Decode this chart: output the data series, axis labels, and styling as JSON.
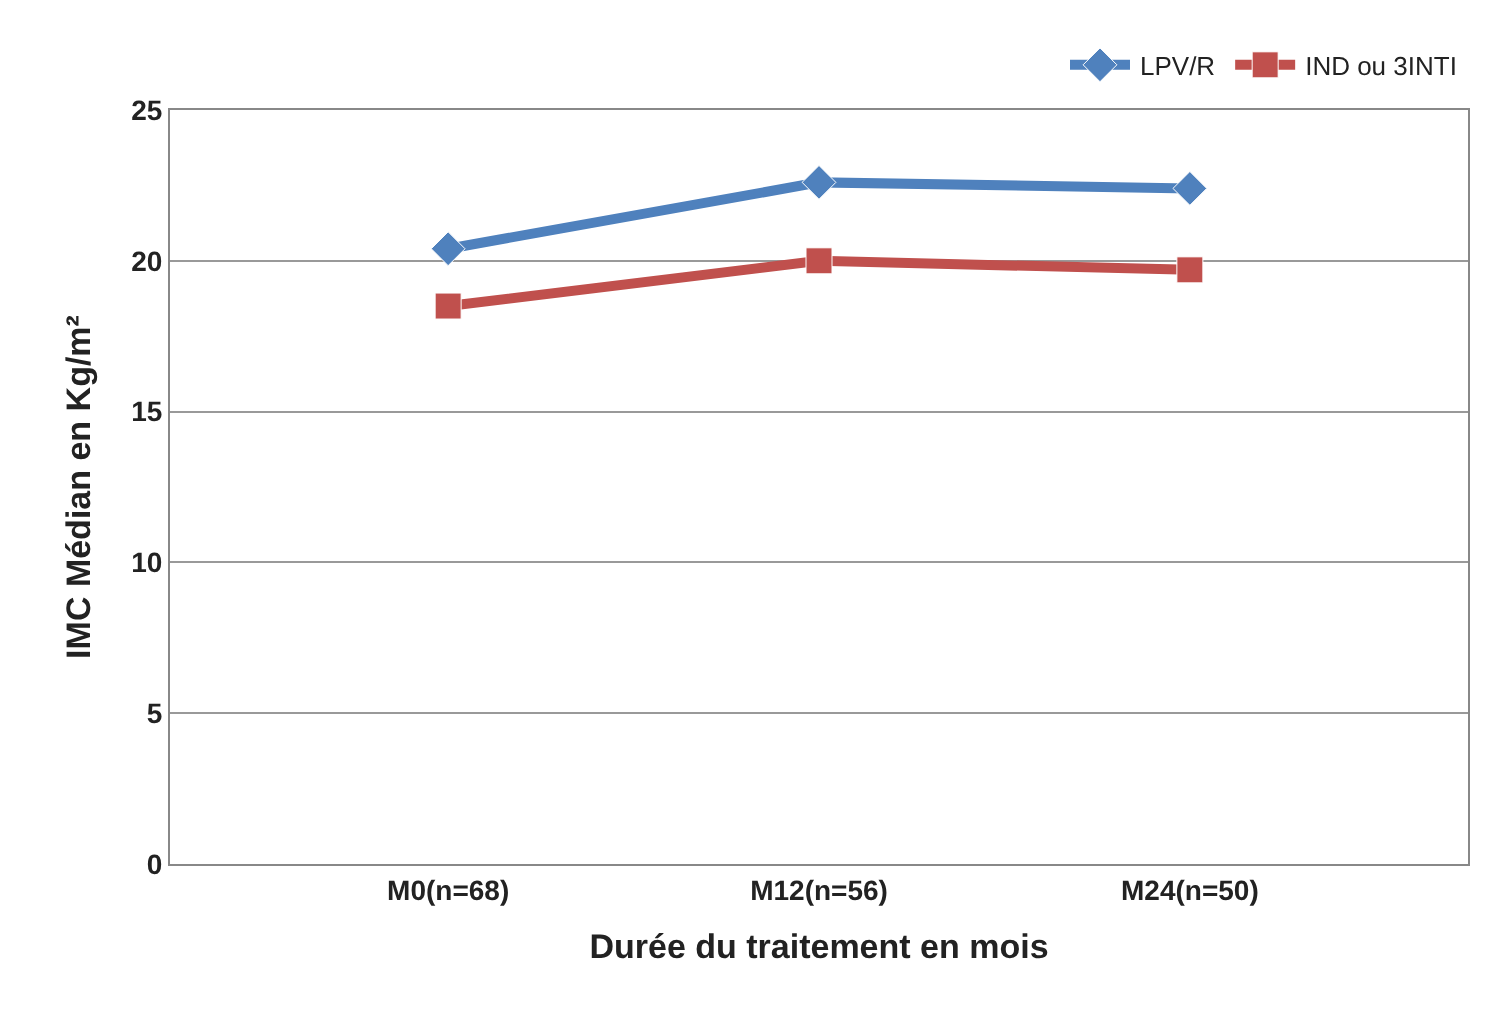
{
  "chart_data": {
    "type": "line",
    "xlabel": "Durée du traitement en mois",
    "ylabel": "IMC Médian en Kg/m²",
    "categories": [
      "M0(n=68)",
      "M12(n=56)",
      "M24(n=50)"
    ],
    "series": [
      {
        "name": "LPV/R",
        "color": "#4f81bd",
        "marker": "diamond",
        "values": [
          20.4,
          22.6,
          22.4
        ]
      },
      {
        "name": "IND ou 3INTI",
        "color": "#c0504d",
        "marker": "square",
        "values": [
          18.5,
          20.0,
          19.7
        ]
      }
    ],
    "ylim": [
      0,
      25
    ],
    "yticks": [
      0,
      5,
      10,
      15,
      20,
      25
    ],
    "grid": "y",
    "legend": "top right",
    "line_style": "solid"
  }
}
